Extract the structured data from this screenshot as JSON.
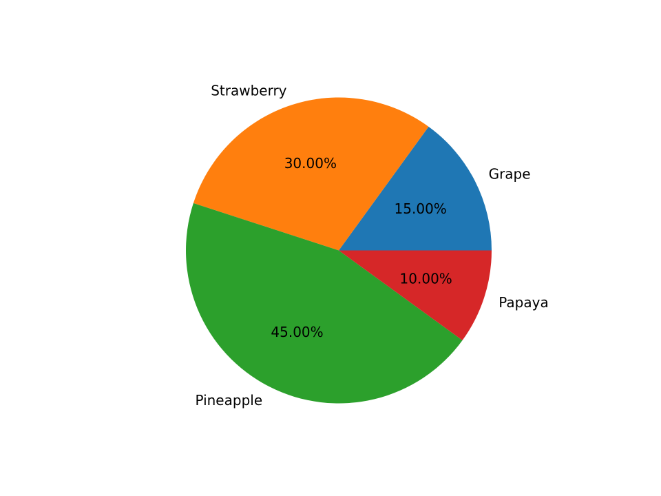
{
  "chart_data": {
    "type": "pie",
    "categories": [
      "Grape",
      "Strawberry",
      "Pineapple",
      "Papaya"
    ],
    "values": [
      15,
      30,
      45,
      10
    ],
    "value_labels": [
      "15.00%",
      "30.00%",
      "45.00%",
      "10.00%"
    ],
    "colors": [
      "#1f77b4",
      "#ff7f0e",
      "#2ca02c",
      "#d62728"
    ],
    "start_angle_deg": 0,
    "direction": "counterclockwise"
  }
}
